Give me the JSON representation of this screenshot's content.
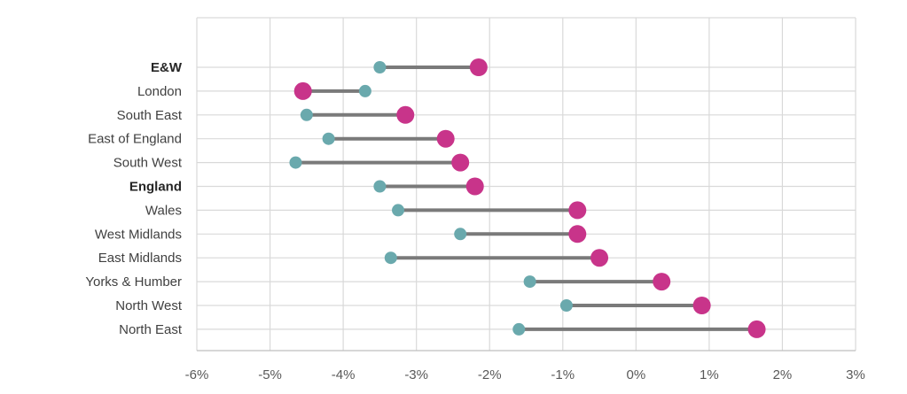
{
  "chart_data": {
    "type": "dumbbell",
    "title": "",
    "xlabel": "",
    "ylabel": "",
    "xlim": [
      -6,
      3
    ],
    "grid": true,
    "x_ticks": [
      -6,
      -5,
      -4,
      -3,
      -2,
      -1,
      0,
      1,
      2,
      3
    ],
    "x_tick_labels": [
      "-6%",
      "-5%",
      "-4%",
      "-3%",
      "-2%",
      "-1%",
      "0%",
      "1%",
      "2%",
      "3%"
    ],
    "categories": [
      "E&W",
      "London",
      "South East",
      "East of England",
      "South West",
      "England",
      "Wales",
      "West Midlands",
      "East Midlands",
      "Yorks & Humber",
      "North West",
      "North East"
    ],
    "bold_categories": [
      "E&W",
      "England"
    ],
    "series": [
      {
        "values": [
          -3.5,
          -3.7,
          -4.5,
          -4.2,
          -4.65,
          -3.5,
          -3.25,
          -2.4,
          -3.35,
          -1.45,
          -0.95,
          -1.6
        ]
      },
      {
        "values": [
          -2.15,
          -4.55,
          -3.15,
          -2.6,
          -2.4,
          -2.2,
          -0.8,
          -0.8,
          -0.5,
          0.35,
          0.9,
          1.65
        ]
      }
    ],
    "colors": {
      "series_a": "#6aa9ad",
      "series_b": "#c8348a",
      "connector": "#7a7a7a",
      "grid": "#d9d9d9"
    }
  }
}
